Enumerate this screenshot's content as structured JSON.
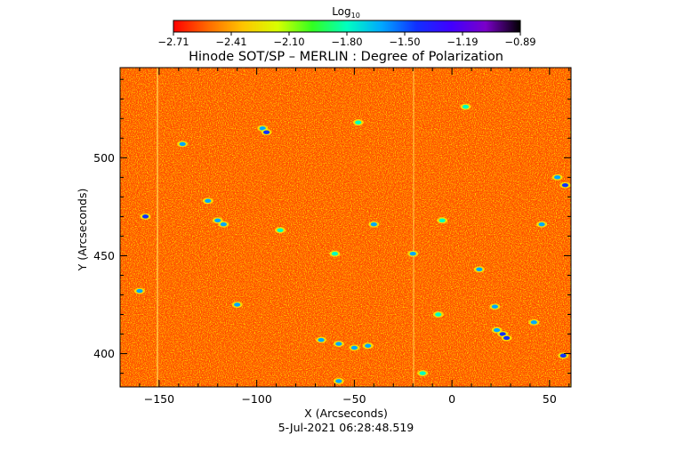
{
  "chart_data": {
    "type": "heatmap",
    "title": "Hinode SOT/SP – MERLIN : Degree of Polarization",
    "xlabel": "X (Arcseconds)",
    "ylabel": "Y (Arcseconds)",
    "timestamp": "5-Jul-2021 06:28:48.519",
    "xlim": [
      -170,
      61
    ],
    "ylim": [
      383,
      546
    ],
    "x_ticks": [
      -150,
      -100,
      -50,
      0,
      50
    ],
    "x_tick_labels": [
      "−150",
      "−100",
      "−50",
      "0",
      "50"
    ],
    "y_ticks": [
      400,
      450,
      500
    ],
    "y_tick_labels": [
      "400",
      "450",
      "500"
    ],
    "colorbar": {
      "label_base": "Log",
      "label_sub": "10",
      "tick_labels": [
        "−2.71",
        "−2.41",
        "−2.10",
        "−1.80",
        "−1.50",
        "−1.19",
        "−0.89"
      ],
      "range": [
        -2.71,
        -0.89
      ],
      "colormap": [
        "#ff0000",
        "#ff6a00",
        "#ffc400",
        "#d8ff00",
        "#32ff20",
        "#00ffc0",
        "#00a8ff",
        "#1030ff",
        "#4000ff",
        "#7a00c8",
        "#000000"
      ]
    },
    "background_level": "mostly red/orange with yellow speckle",
    "features": [
      {
        "x": -138,
        "y": 507,
        "level": -1.7
      },
      {
        "x": -97,
        "y": 515,
        "level": -1.6
      },
      {
        "x": -95,
        "y": 513,
        "level": -1.5
      },
      {
        "x": -48,
        "y": 518,
        "level": -1.8
      },
      {
        "x": 7,
        "y": 526,
        "level": -1.8
      },
      {
        "x": 54,
        "y": 490,
        "level": -1.6
      },
      {
        "x": 58,
        "y": 486,
        "level": -1.5
      },
      {
        "x": -157,
        "y": 470,
        "level": -1.5
      },
      {
        "x": -120,
        "y": 468,
        "level": -1.6
      },
      {
        "x": -117,
        "y": 466,
        "level": -1.55
      },
      {
        "x": -125,
        "y": 478,
        "level": -1.7
      },
      {
        "x": -40,
        "y": 466,
        "level": -1.6
      },
      {
        "x": -88,
        "y": 463,
        "level": -1.8
      },
      {
        "x": -20,
        "y": 451,
        "level": -1.7
      },
      {
        "x": -5,
        "y": 468,
        "level": -1.8
      },
      {
        "x": 46,
        "y": 466,
        "level": -1.7
      },
      {
        "x": -160,
        "y": 432,
        "level": -1.7
      },
      {
        "x": -60,
        "y": 451,
        "level": -1.8
      },
      {
        "x": 14,
        "y": 443,
        "level": -1.7
      },
      {
        "x": -7,
        "y": 420,
        "level": -1.8
      },
      {
        "x": 22,
        "y": 424,
        "level": -1.6
      },
      {
        "x": 23,
        "y": 412,
        "level": -1.55
      },
      {
        "x": 26,
        "y": 410,
        "level": -1.45
      },
      {
        "x": 28,
        "y": 408,
        "level": -1.4
      },
      {
        "x": -67,
        "y": 407,
        "level": -1.7
      },
      {
        "x": -58,
        "y": 405,
        "level": -1.6
      },
      {
        "x": -50,
        "y": 403,
        "level": -1.55
      },
      {
        "x": -43,
        "y": 404,
        "level": -1.6
      },
      {
        "x": -110,
        "y": 425,
        "level": -1.7
      },
      {
        "x": 57,
        "y": 399,
        "level": -1.5
      },
      {
        "x": 42,
        "y": 416,
        "level": -1.7
      },
      {
        "x": -58,
        "y": 386,
        "level": -1.7
      },
      {
        "x": -15,
        "y": 390,
        "level": -1.8
      }
    ]
  }
}
